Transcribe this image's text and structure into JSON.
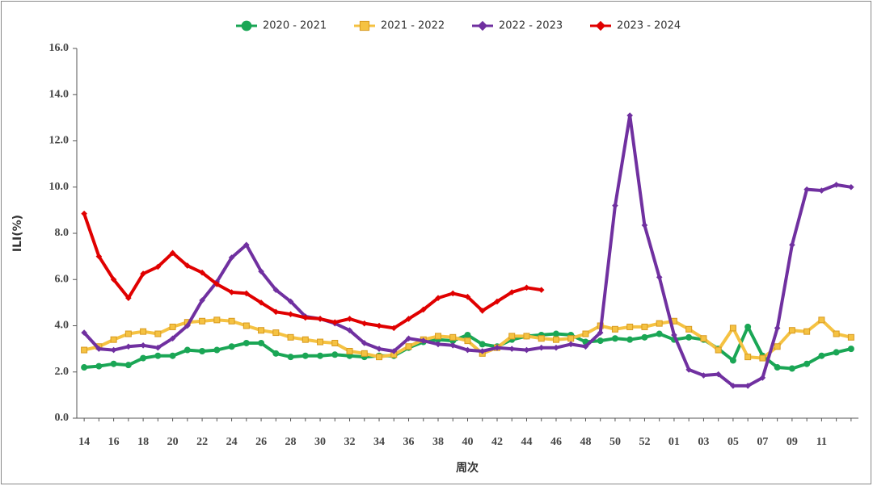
{
  "chart_data": {
    "type": "line",
    "y_label": "ILI(%)",
    "x_label": "周次",
    "categories": [
      "14",
      null,
      "16",
      null,
      "18",
      null,
      "20",
      null,
      "22",
      null,
      "24",
      null,
      "26",
      null,
      "28",
      null,
      "30",
      null,
      "32",
      null,
      "34",
      null,
      "36",
      null,
      "38",
      null,
      "40",
      null,
      "42",
      null,
      "44",
      null,
      "46",
      null,
      "48",
      null,
      "50",
      null,
      "52",
      null,
      "01",
      null,
      "03",
      null,
      "05",
      null,
      "07",
      null,
      "09",
      null,
      "11",
      null,
      null
    ],
    "ylim": [
      0,
      16
    ],
    "yticks": [
      {
        "value": 0,
        "label": "0.0"
      },
      {
        "value": 2,
        "label": "2.0"
      },
      {
        "value": 4,
        "label": "4.0"
      },
      {
        "value": 6,
        "label": "6.0"
      },
      {
        "value": 8,
        "label": "8.0"
      },
      {
        "value": 10,
        "label": "10.0"
      },
      {
        "value": 12,
        "label": "12.0"
      },
      {
        "value": 14,
        "label": "14.0"
      },
      {
        "value": 16,
        "label": "16.0"
      }
    ],
    "legend": "top",
    "series": [
      {
        "name": "2020 - 2021",
        "color": "#1aa655",
        "marker": "circle",
        "values": [
          2.2,
          2.25,
          2.35,
          2.3,
          2.6,
          2.7,
          2.7,
          2.95,
          2.9,
          2.95,
          3.1,
          3.25,
          3.25,
          2.8,
          2.65,
          2.7,
          2.7,
          2.75,
          2.7,
          2.65,
          2.7,
          2.7,
          3.05,
          3.3,
          3.4,
          3.35,
          3.6,
          3.2,
          3.1,
          3.4,
          3.55,
          3.6,
          3.65,
          3.6,
          3.3,
          3.35,
          3.45,
          3.4,
          3.5,
          3.65,
          3.4,
          3.5,
          3.4,
          3.0,
          2.5,
          3.95,
          2.7,
          2.2,
          2.15,
          2.35,
          2.7,
          2.85,
          3.0
        ]
      },
      {
        "name": "2021 - 2022",
        "color": "#f5c242",
        "marker": "square",
        "values": [
          2.95,
          3.1,
          3.4,
          3.65,
          3.75,
          3.65,
          3.95,
          4.15,
          4.2,
          4.25,
          4.2,
          4.0,
          3.8,
          3.7,
          3.5,
          3.4,
          3.3,
          3.25,
          2.9,
          2.8,
          2.65,
          2.75,
          3.1,
          3.4,
          3.55,
          3.5,
          3.35,
          2.8,
          3.05,
          3.55,
          3.55,
          3.45,
          3.4,
          3.45,
          3.65,
          4.0,
          3.85,
          3.95,
          3.95,
          4.1,
          4.2,
          3.85,
          3.45,
          2.95,
          3.9,
          2.65,
          2.6,
          3.1,
          3.8,
          3.75,
          4.25,
          3.65,
          3.5
        ]
      },
      {
        "name": "2022 - 2023",
        "color": "#7030a0",
        "marker": "diamond",
        "values": [
          3.7,
          3.0,
          2.95,
          3.1,
          3.15,
          3.05,
          3.45,
          4.0,
          5.1,
          5.9,
          6.95,
          7.5,
          6.35,
          5.55,
          5.05,
          4.4,
          4.3,
          4.1,
          3.8,
          3.25,
          3.0,
          2.9,
          3.45,
          3.35,
          3.2,
          3.15,
          2.95,
          2.9,
          3.05,
          3.0,
          2.95,
          3.05,
          3.05,
          3.2,
          3.1,
          3.7,
          9.2,
          13.1,
          8.35,
          6.1,
          3.6,
          2.1,
          1.85,
          1.9,
          1.4,
          1.4,
          1.75,
          3.9,
          7.5,
          9.9,
          9.85,
          10.1,
          10.0
        ]
      },
      {
        "name": "2023 - 2024",
        "color": "#e00000",
        "marker": "diamond",
        "values": [
          8.85,
          7.0,
          6.0,
          5.2,
          6.25,
          6.55,
          7.15,
          6.6,
          6.3,
          5.8,
          5.45,
          5.4,
          5.0,
          4.6,
          4.5,
          4.35,
          4.3,
          4.15,
          4.3,
          4.1,
          4.0,
          3.9,
          4.3,
          4.7,
          5.2,
          5.4,
          5.25,
          4.65,
          5.05,
          5.45,
          5.65,
          5.55,
          null,
          null,
          null,
          null,
          null,
          null,
          null,
          null,
          null,
          null,
          null,
          null,
          null,
          null,
          null,
          null,
          null,
          null,
          null,
          null,
          null
        ]
      }
    ]
  }
}
